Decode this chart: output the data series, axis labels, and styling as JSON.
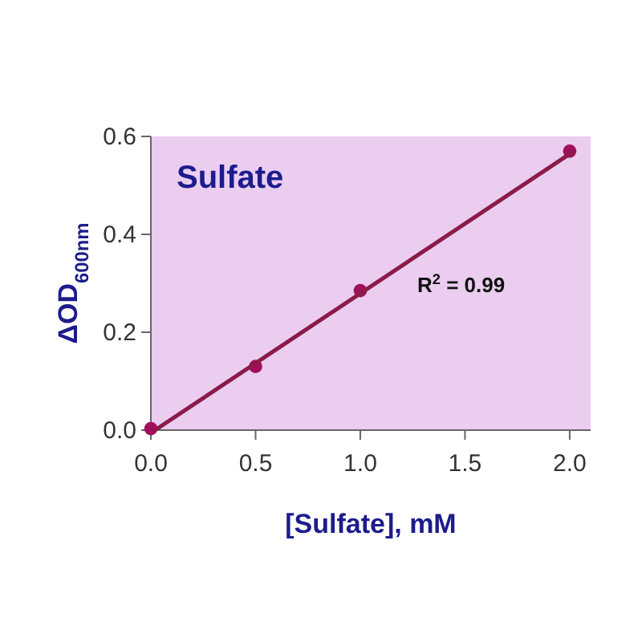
{
  "chart_data": {
    "type": "scatter",
    "title": "Sulfate",
    "xlabel": "[Sulfate], mM",
    "ylabel": "ΔOD$_{600nm}$",
    "annotations": [
      "R$^{2}$ = 0.99"
    ],
    "series": [
      {
        "marker": "circle",
        "color": "#a0105a",
        "x": [
          0,
          0.5,
          1.0,
          2.0
        ],
        "values": [
          0.003,
          0.13,
          0.285,
          0.57
        ]
      },
      {
        "type": "line",
        "marker": "none",
        "color": "#8b1a4a",
        "x": [
          0.02,
          2.02
        ],
        "values": [
          0.0,
          0.57
        ]
      }
    ],
    "xlim": [
      0,
      2.1
    ],
    "ylim": [
      0,
      0.6
    ],
    "xticks": [
      {
        "value": 0,
        "label": "0.0"
      },
      0.5,
      {
        "value": 1,
        "label": "1.0"
      },
      1.5,
      {
        "value": 2,
        "label": "2.0"
      }
    ],
    "yticks": [
      {
        "value": 0,
        "label": "0.0"
      },
      0.2,
      0.4,
      0.6
    ],
    "grid": false,
    "line_style": "solid"
  }
}
